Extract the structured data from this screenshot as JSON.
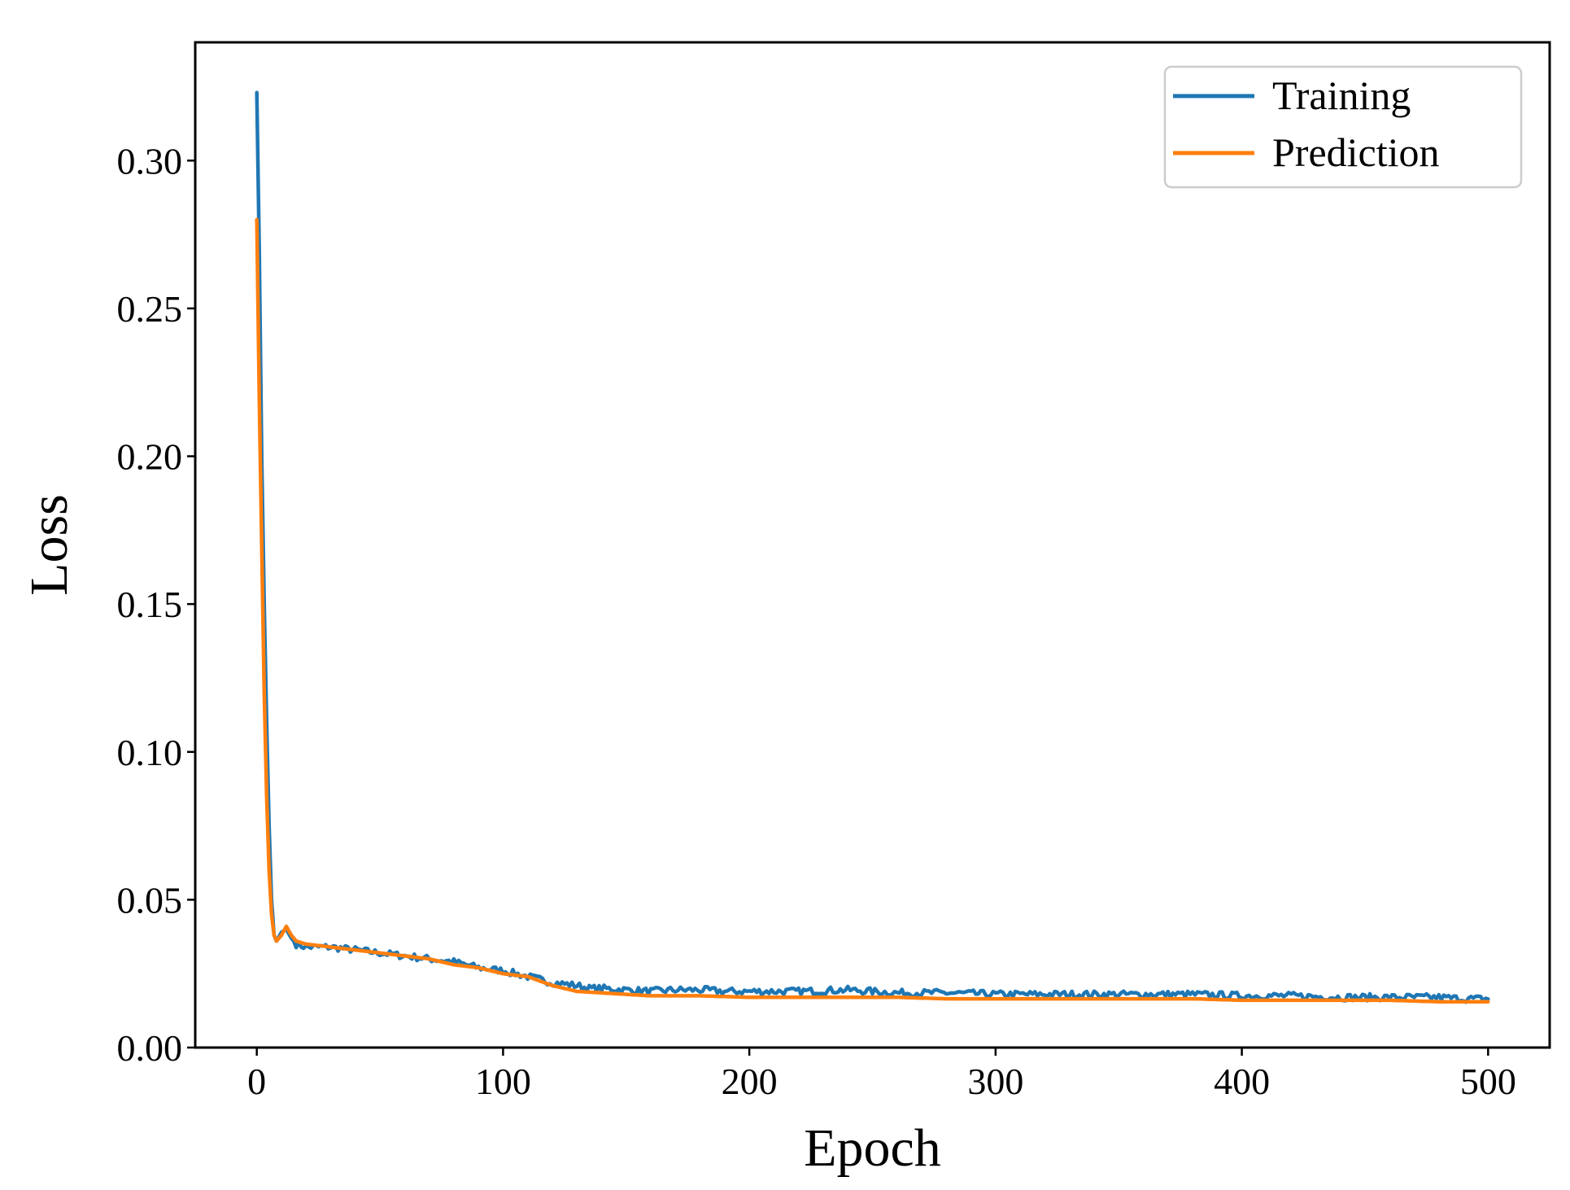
{
  "chart_data": {
    "type": "line",
    "title": "",
    "xlabel": "Epoch",
    "ylabel": "Loss",
    "xlim": [
      -25,
      525
    ],
    "ylim": [
      0.0,
      0.34
    ],
    "grid": false,
    "legend_position": "top-right",
    "x_ticks": [
      {
        "value": 0,
        "label": "0"
      },
      {
        "value": 100,
        "label": "100"
      },
      {
        "value": 200,
        "label": "200"
      },
      {
        "value": 300,
        "label": "300"
      },
      {
        "value": 400,
        "label": "400"
      },
      {
        "value": 500,
        "label": "500"
      }
    ],
    "y_ticks": [
      {
        "value": 0.0,
        "label": "0.00"
      },
      {
        "value": 0.05,
        "label": "0.05"
      },
      {
        "value": 0.1,
        "label": "0.10"
      },
      {
        "value": 0.15,
        "label": "0.15"
      },
      {
        "value": 0.2,
        "label": "0.20"
      },
      {
        "value": 0.25,
        "label": "0.25"
      },
      {
        "value": 0.3,
        "label": "0.30"
      }
    ],
    "series": [
      {
        "name": "Training",
        "color": "#1f77b4",
        "noisy_tail_amplitude": 0.0012,
        "x": [
          0,
          1,
          2,
          3,
          4,
          5,
          6,
          7,
          8,
          10,
          12,
          14,
          16,
          20,
          30,
          40,
          50,
          60,
          70,
          80,
          90,
          100,
          110,
          120,
          130,
          135,
          140,
          150,
          160,
          170,
          180,
          190,
          200,
          220,
          240,
          260,
          280,
          300,
          320,
          340,
          360,
          380,
          400,
          420,
          440,
          460,
          480,
          490,
          500
        ],
        "y": [
          0.323,
          0.27,
          0.2,
          0.15,
          0.11,
          0.075,
          0.05,
          0.038,
          0.036,
          0.039,
          0.04,
          0.037,
          0.035,
          0.034,
          0.034,
          0.033,
          0.032,
          0.031,
          0.03,
          0.029,
          0.027,
          0.026,
          0.024,
          0.022,
          0.021,
          0.02,
          0.02,
          0.0195,
          0.019,
          0.0195,
          0.0195,
          0.019,
          0.019,
          0.019,
          0.0195,
          0.0185,
          0.0185,
          0.018,
          0.018,
          0.018,
          0.018,
          0.018,
          0.0175,
          0.0175,
          0.017,
          0.017,
          0.017,
          0.0165,
          0.0165
        ]
      },
      {
        "name": "Prediction",
        "color": "#ff7f0e",
        "noisy_tail_amplitude": 0,
        "x": [
          0,
          1,
          2,
          3,
          4,
          5,
          6,
          7,
          8,
          10,
          12,
          14,
          16,
          20,
          30,
          40,
          50,
          60,
          70,
          80,
          90,
          100,
          110,
          120,
          130,
          140,
          150,
          160,
          170,
          180,
          200,
          220,
          240,
          260,
          280,
          300,
          320,
          340,
          360,
          380,
          400,
          420,
          440,
          460,
          480,
          500
        ],
        "y": [
          0.28,
          0.22,
          0.17,
          0.12,
          0.085,
          0.06,
          0.045,
          0.038,
          0.036,
          0.038,
          0.041,
          0.038,
          0.036,
          0.035,
          0.034,
          0.033,
          0.032,
          0.031,
          0.03,
          0.028,
          0.027,
          0.025,
          0.024,
          0.021,
          0.019,
          0.0185,
          0.018,
          0.0175,
          0.0175,
          0.0175,
          0.017,
          0.017,
          0.017,
          0.017,
          0.0165,
          0.0165,
          0.0165,
          0.0165,
          0.0165,
          0.0165,
          0.016,
          0.016,
          0.016,
          0.016,
          0.0155,
          0.0155
        ]
      }
    ]
  }
}
